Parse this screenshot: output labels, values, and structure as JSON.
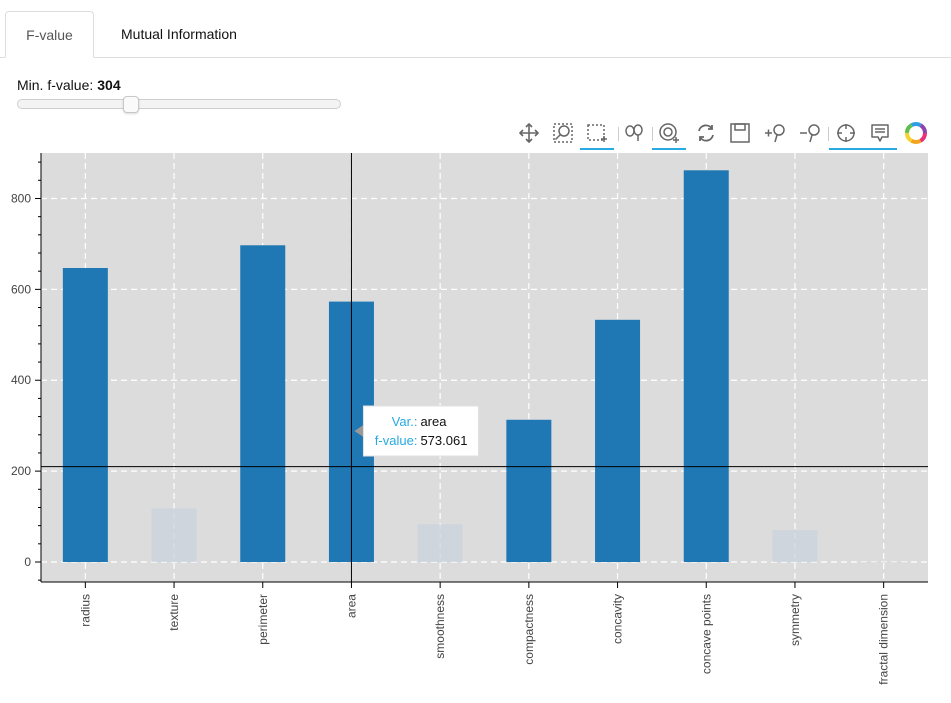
{
  "tabs": [
    {
      "label": "F-value",
      "active": true
    },
    {
      "label": "Mutual Information",
      "active": false
    }
  ],
  "slider": {
    "label": "Min. f-value:",
    "value": "304",
    "value_num": 304
  },
  "toolbar": {
    "tools": [
      {
        "name": "pan-tool-icon",
        "active": false
      },
      {
        "name": "box-zoom-icon",
        "active": false
      },
      {
        "name": "box-select-icon",
        "active": true
      },
      {
        "name": "lasso-select-icon",
        "active": false
      },
      {
        "name": "wheel-zoom-icon",
        "active": true
      },
      {
        "name": "reset-icon",
        "active": false
      },
      {
        "name": "save-icon",
        "active": false
      },
      {
        "name": "zoom-in-icon",
        "active": false
      },
      {
        "name": "zoom-out-icon",
        "active": false
      },
      {
        "name": "crosshair-icon",
        "active": true
      },
      {
        "name": "hover-icon",
        "active": true
      },
      {
        "name": "bokeh-logo-icon",
        "active": false
      }
    ]
  },
  "colors": {
    "selected_bar": "#1f77b4",
    "unselected_bar": "#c9d3dc",
    "plot_background": "#dcdcdc",
    "tooltip_key": "#26aae1",
    "toolbar_active": "#26aae1"
  },
  "chart_data": {
    "type": "bar",
    "categories": [
      "radius",
      "texture",
      "perimeter",
      "area",
      "smoothness",
      "compactness",
      "concavity",
      "concave points",
      "symmetry",
      "fractal dimension"
    ],
    "values": [
      647,
      118,
      697,
      573.061,
      83,
      313,
      533,
      862,
      70,
      0.1
    ],
    "selected": [
      true,
      false,
      true,
      true,
      false,
      true,
      true,
      true,
      false,
      false
    ],
    "yticks": [
      0,
      200,
      400,
      600,
      800
    ],
    "ylim": [
      -40,
      900
    ],
    "grid": true,
    "tooltip": {
      "category": "area",
      "var_label": "Var.:",
      "var_value": "area",
      "f_label": "f-value:",
      "f_value": "573.061"
    },
    "crosshair": {
      "x_category": "area",
      "y_value": 210
    }
  }
}
